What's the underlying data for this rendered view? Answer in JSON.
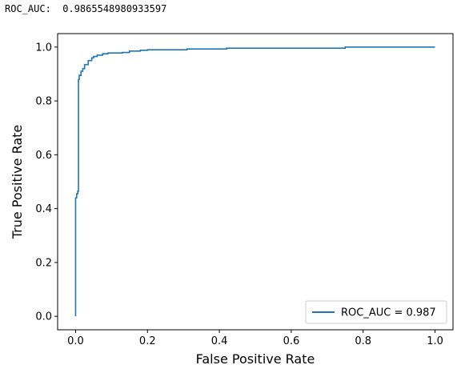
{
  "console": {
    "label": "ROC_AUC:",
    "value": "0.9865548980933597"
  },
  "chart_data": {
    "type": "line",
    "title": "",
    "xlabel": "False Positive Rate",
    "ylabel": "True Positive Rate",
    "xlim": [
      -0.05,
      1.05
    ],
    "ylim": [
      -0.05,
      1.05
    ],
    "xticks": [
      "0.0",
      "0.2",
      "0.4",
      "0.6",
      "0.8",
      "1.0"
    ],
    "xtick_values": [
      0.0,
      0.2,
      0.4,
      0.6,
      0.8,
      1.0
    ],
    "yticks": [
      "0.0",
      "0.2",
      "0.4",
      "0.6",
      "0.8",
      "1.0"
    ],
    "ytick_values": [
      0.0,
      0.2,
      0.4,
      0.6,
      0.8,
      1.0
    ],
    "grid": false,
    "legend_position": "lower-right",
    "series": [
      {
        "name": "ROC_AUC = 0.987",
        "color": "#1f77b4",
        "step": true,
        "x": [
          0.0,
          0.0,
          0.003,
          0.003,
          0.006,
          0.006,
          0.008,
          0.008,
          0.01,
          0.01,
          0.015,
          0.015,
          0.02,
          0.02,
          0.025,
          0.025,
          0.035,
          0.035,
          0.045,
          0.045,
          0.05,
          0.05,
          0.06,
          0.06,
          0.075,
          0.075,
          0.09,
          0.09,
          0.13,
          0.13,
          0.15,
          0.15,
          0.18,
          0.18,
          0.2,
          0.2,
          0.31,
          0.31,
          0.42,
          0.42,
          0.75,
          0.75,
          1.0
        ],
        "y": [
          0.0,
          0.44,
          0.44,
          0.455,
          0.455,
          0.465,
          0.465,
          0.88,
          0.88,
          0.895,
          0.895,
          0.91,
          0.91,
          0.92,
          0.92,
          0.935,
          0.935,
          0.95,
          0.95,
          0.96,
          0.96,
          0.965,
          0.965,
          0.97,
          0.97,
          0.975,
          0.975,
          0.978,
          0.978,
          0.98,
          0.98,
          0.985,
          0.985,
          0.988,
          0.988,
          0.99,
          0.99,
          0.993,
          0.993,
          0.996,
          0.996,
          1.0,
          1.0
        ]
      }
    ]
  }
}
